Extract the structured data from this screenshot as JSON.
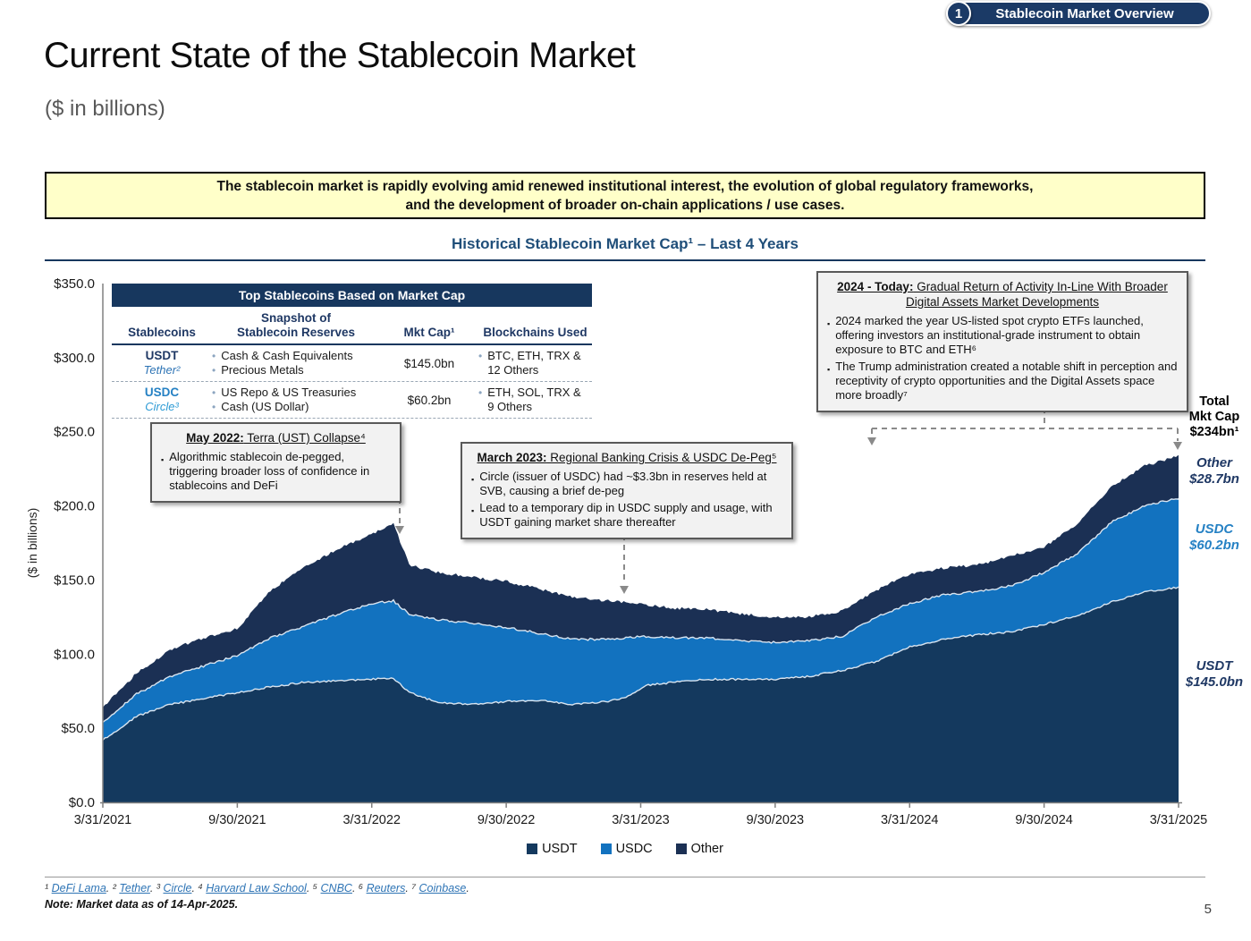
{
  "badge": {
    "number": "1",
    "label": "Stablecoin Market Overview"
  },
  "header": {
    "title": "Current State of the Stablecoin Market",
    "subtitle": "($ in billions)"
  },
  "banner": {
    "line1": "The stablecoin market is rapidly evolving amid renewed institutional interest, the evolution of global regulatory frameworks,",
    "line2": "and the development of broader on-chain applications / use cases."
  },
  "chart": {
    "title": "Historical Stablecoin Market Cap¹ – Last 4 Years",
    "y_axis_label": "($ in billions)"
  },
  "table": {
    "title": "Top Stablecoins Based on Market Cap",
    "col_stablecoins": "Stablecoins",
    "col_reserves_line1": "Snapshot of",
    "col_reserves_line2": "Stablecoin Reserves",
    "col_mktcap": "Mkt Cap¹",
    "col_blockchains": "Blockchains Used",
    "rows": [
      {
        "name": "USDT",
        "issuer": "Tether²",
        "reserves": [
          "Cash & Cash Equivalents",
          "Precious Metals"
        ],
        "mkt_cap": "$145.0bn",
        "blockchains": [
          "BTC, ETH, TRX & 12 Others"
        ]
      },
      {
        "name": "USDC",
        "issuer": "Circle³",
        "reserves": [
          "US Repo & US Treasuries",
          "Cash (US Dollar)"
        ],
        "mkt_cap": "$60.2bn",
        "blockchains": [
          "ETH, SOL, TRX & 9 Others"
        ]
      }
    ]
  },
  "callouts": {
    "may2022": {
      "date": "May 2022:",
      "title": " Terra (UST) Collapse⁴",
      "bullets": [
        "Algorithmic stablecoin de-pegged, triggering broader loss of confidence in stablecoins and DeFi"
      ]
    },
    "march2023": {
      "date": "March 2023:",
      "title": " Regional Banking Crisis & USDC De-Peg⁵",
      "bullets": [
        "Circle (issuer of USDC) had ~$3.3bn in reserves held at SVB, causing a brief de-peg",
        "Lead to a temporary dip in USDC supply and usage, with USDT gaining market share thereafter"
      ]
    },
    "today2024": {
      "date": "2024 - Today:",
      "title": " Gradual Return of Activity In-Line With Broader Digital Assets Market Developments",
      "bullets": [
        "2024 marked the year US-listed spot crypto ETFs launched, offering investors an institutional-grade instrument to obtain exposure to BTC and ETH⁶",
        "The Trump administration created a notable shift in perception and receptivity of crypto opportunities and the Digital Assets space more broadly⁷"
      ]
    }
  },
  "side_labels": {
    "total": {
      "line1": "Total",
      "line2": "Mkt Cap",
      "line3": "$234bn¹"
    },
    "other": {
      "line1": "Other",
      "line2": "$28.7bn"
    },
    "usdc": {
      "line1": "USDC",
      "line2": "$60.2bn"
    },
    "usdt": {
      "line1": "USDT",
      "line2": "$145.0bn"
    }
  },
  "footnotes": [
    {
      "marker": "¹",
      "text": "DeFi Lama"
    },
    {
      "marker": "²",
      "text": "Tether"
    },
    {
      "marker": "³",
      "text": "Circle"
    },
    {
      "marker": "⁴",
      "text": "Harvard Law School"
    },
    {
      "marker": "⁵",
      "text": "CNBC"
    },
    {
      "marker": "⁶",
      "text": "Reuters"
    },
    {
      "marker": "⁷",
      "text": "Coinbase"
    }
  ],
  "note": "Note: Market data as of 14-Apr-2025.",
  "page_number": "5",
  "chart_data": {
    "type": "area",
    "stacked": true,
    "title": "Historical Stablecoin Market Cap¹ – Last 4 Years",
    "xlabel": "",
    "ylabel": "($ in billions)",
    "ylim": [
      0,
      350
    ],
    "grid": false,
    "legend_position": "bottom",
    "y_tick_labels": [
      "$0.0",
      "$50.0",
      "$100.0",
      "$150.0",
      "$200.0",
      "$250.0",
      "$300.0",
      "$350.0"
    ],
    "x_tick_labels": [
      "3/31/2021",
      "9/30/2021",
      "3/31/2022",
      "9/30/2022",
      "3/31/2023",
      "9/30/2023",
      "3/31/2024",
      "9/30/2024",
      "3/31/2025"
    ],
    "x_years": [
      0,
      0.125,
      0.25,
      0.375,
      0.5,
      0.625,
      0.75,
      0.875,
      1.0,
      1.08,
      1.14,
      1.25,
      1.375,
      1.5,
      1.625,
      1.75,
      1.875,
      1.95,
      2.02,
      2.125,
      2.25,
      2.375,
      2.5,
      2.625,
      2.75,
      2.875,
      3.0,
      3.125,
      3.25,
      3.375,
      3.5,
      3.625,
      3.75,
      3.875,
      4.0
    ],
    "series": [
      {
        "name": "USDT",
        "color": "#14395E",
        "values": [
          42,
          58,
          66,
          70,
          74,
          78,
          81,
          82,
          83,
          84,
          74,
          67,
          66,
          68,
          69,
          66,
          68,
          71,
          79,
          81,
          83,
          83,
          83,
          85,
          89,
          95,
          105,
          110,
          113,
          115,
          120,
          126,
          135,
          142,
          145
        ]
      },
      {
        "name": "USDC",
        "color": "#1272BF",
        "values": [
          12,
          15,
          19,
          22,
          25,
          33,
          38,
          45,
          51,
          52,
          53,
          56,
          55,
          50,
          45,
          44,
          42,
          40,
          33,
          30,
          28,
          26,
          25,
          24,
          23,
          30,
          29,
          30,
          29,
          31,
          35,
          42,
          54,
          58,
          60.2
        ]
      },
      {
        "name": "Other",
        "color": "#1B3054",
        "values": [
          10,
          14,
          18,
          19,
          18,
          32,
          40,
          44,
          47,
          52,
          33,
          32,
          31,
          31,
          30,
          28,
          26,
          24,
          21,
          20,
          19,
          18,
          17,
          16,
          17,
          18,
          20,
          18,
          18,
          20,
          17,
          20,
          24,
          27,
          28.7
        ]
      }
    ],
    "end_values": {
      "total": "$234bn¹",
      "usdt": "$145.0bn",
      "usdc": "$60.2bn",
      "other": "$28.7bn"
    }
  }
}
